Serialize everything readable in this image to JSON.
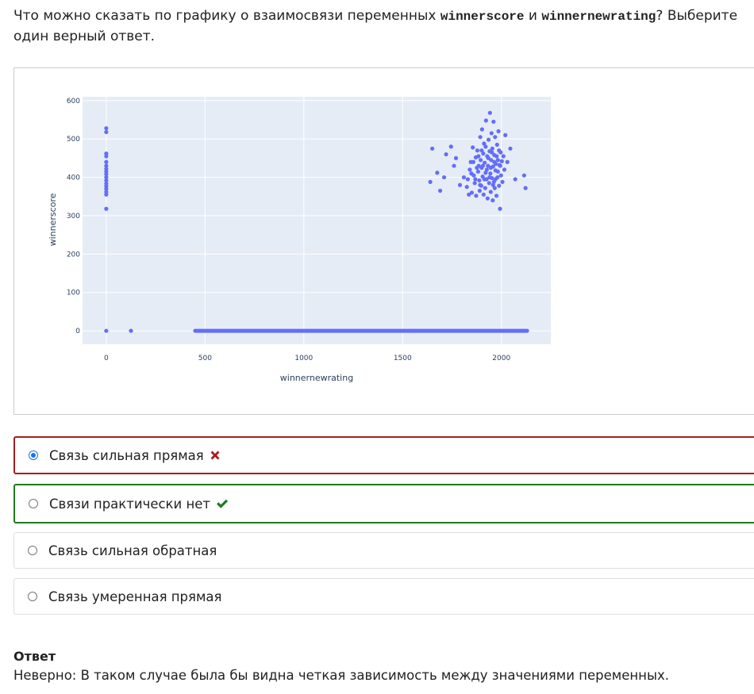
{
  "question": {
    "text_before": "Что можно сказать по графику о взаимосвязи переменных ",
    "var1": "winnerscore",
    "text_mid": " и ",
    "var2": "winnernewrating",
    "text_after": "? Выберите один верный ответ."
  },
  "chart_data": {
    "type": "scatter",
    "xlabel": "winnernewrating",
    "ylabel": "winnerscore",
    "xlim": [
      -120,
      2250
    ],
    "ylim": [
      -35,
      610
    ],
    "xticks": [
      0,
      500,
      1000,
      1500,
      2000
    ],
    "yticks": [
      0,
      100,
      200,
      300,
      400,
      500,
      600
    ],
    "marker_color": "#636efa",
    "plot_bg": "#e5ecf6",
    "zero_line_segment": {
      "x_from": 450,
      "x_to": 2130,
      "y": 0
    },
    "points": [
      [
        0,
        528
      ],
      [
        0,
        518
      ],
      [
        0,
        462
      ],
      [
        0,
        455
      ],
      [
        0,
        440
      ],
      [
        0,
        430
      ],
      [
        0,
        422
      ],
      [
        0,
        415
      ],
      [
        0,
        408
      ],
      [
        0,
        400
      ],
      [
        0,
        392
      ],
      [
        0,
        384
      ],
      [
        0,
        377
      ],
      [
        0,
        370
      ],
      [
        0,
        362
      ],
      [
        0,
        355
      ],
      [
        0,
        318
      ],
      [
        0,
        0
      ],
      [
        125,
        0
      ],
      [
        1640,
        388
      ],
      [
        1650,
        475
      ],
      [
        1675,
        412
      ],
      [
        1690,
        365
      ],
      [
        1710,
        400
      ],
      [
        1720,
        460
      ],
      [
        1745,
        480
      ],
      [
        1760,
        430
      ],
      [
        1770,
        450
      ],
      [
        1790,
        380
      ],
      [
        1810,
        400
      ],
      [
        1825,
        375
      ],
      [
        1830,
        395
      ],
      [
        1840,
        420
      ],
      [
        1845,
        440
      ],
      [
        1850,
        360
      ],
      [
        1855,
        478
      ],
      [
        1860,
        405
      ],
      [
        1865,
        385
      ],
      [
        1870,
        452
      ],
      [
        1872,
        352
      ],
      [
        1878,
        470
      ],
      [
        1882,
        415
      ],
      [
        1885,
        430
      ],
      [
        1888,
        392
      ],
      [
        1890,
        365
      ],
      [
        1893,
        505
      ],
      [
        1895,
        445
      ],
      [
        1898,
        378
      ],
      [
        1900,
        425
      ],
      [
        1902,
        525
      ],
      [
        1905,
        402
      ],
      [
        1908,
        462
      ],
      [
        1910,
        355
      ],
      [
        1912,
        488
      ],
      [
        1915,
        438
      ],
      [
        1918,
        372
      ],
      [
        1920,
        412
      ],
      [
        1922,
        548
      ],
      [
        1925,
        395
      ],
      [
        1928,
        455
      ],
      [
        1930,
        345
      ],
      [
        1932,
        430
      ],
      [
        1935,
        498
      ],
      [
        1938,
        385
      ],
      [
        1940,
        468
      ],
      [
        1942,
        568
      ],
      [
        1944,
        410
      ],
      [
        1946,
        362
      ],
      [
        1948,
        445
      ],
      [
        1950,
        515
      ],
      [
        1952,
        398
      ],
      [
        1954,
        475
      ],
      [
        1956,
        340
      ],
      [
        1958,
        428
      ],
      [
        1960,
        545
      ],
      [
        1962,
        388
      ],
      [
        1964,
        458
      ],
      [
        1966,
        372
      ],
      [
        1968,
        505
      ],
      [
        1970,
        418
      ],
      [
        1972,
        435
      ],
      [
        1975,
        352
      ],
      [
        1978,
        485
      ],
      [
        1980,
        400
      ],
      [
        1982,
        445
      ],
      [
        1985,
        520
      ],
      [
        1988,
        378
      ],
      [
        1990,
        432
      ],
      [
        1993,
        318
      ],
      [
        1996,
        465
      ],
      [
        1998,
        405
      ],
      [
        2002,
        442
      ],
      [
        2005,
        388
      ],
      [
        2010,
        455
      ],
      [
        2015,
        420
      ],
      [
        2020,
        510
      ],
      [
        2030,
        440
      ],
      [
        2045,
        475
      ],
      [
        2070,
        395
      ],
      [
        2115,
        405
      ],
      [
        2122,
        372
      ],
      [
        1835,
        355
      ],
      [
        1848,
        410
      ],
      [
        1858,
        440
      ],
      [
        1868,
        395
      ],
      [
        1876,
        425
      ],
      [
        1884,
        455
      ],
      [
        1892,
        380
      ],
      [
        1900,
        470
      ],
      [
        1906,
        430
      ],
      [
        1914,
        395
      ],
      [
        1920,
        480
      ],
      [
        1926,
        420
      ],
      [
        1934,
        450
      ],
      [
        1940,
        400
      ],
      [
        1946,
        425
      ],
      [
        1952,
        465
      ],
      [
        1958,
        380
      ],
      [
        1964,
        440
      ],
      [
        1970,
        395
      ],
      [
        1976,
        455
      ],
      [
        1982,
        415
      ],
      [
        1988,
        470
      ],
      [
        1994,
        430
      ]
    ]
  },
  "options": [
    {
      "label": "Связь сильная прямая",
      "checked": true,
      "status": "wrong"
    },
    {
      "label": "Связи практически нет",
      "checked": false,
      "status": "right"
    },
    {
      "label": "Связь сильная обратная",
      "checked": false,
      "status": "none"
    },
    {
      "label": "Связь умеренная прямая",
      "checked": false,
      "status": "none"
    }
  ],
  "answer": {
    "title": "Ответ",
    "text": "Неверно:  В таком случае была бы видна четкая зависимость между значениями переменных."
  },
  "colors": {
    "wrong": "#a81d1d",
    "right": "#1f7a1f",
    "radio": "#1a73e8"
  }
}
